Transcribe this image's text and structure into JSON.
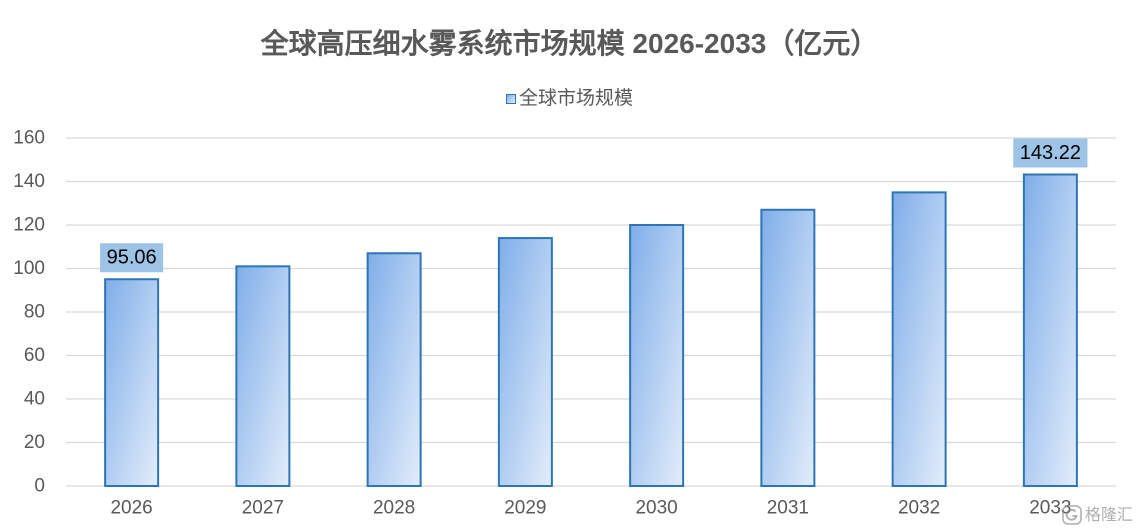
{
  "chart_data": {
    "type": "bar",
    "title": "全球高压细水雾系统市场规模 2026-2033（亿元）",
    "categories": [
      "2026",
      "2027",
      "2028",
      "2029",
      "2030",
      "2031",
      "2032",
      "2033"
    ],
    "series": [
      {
        "name": "全球市场规模",
        "values": [
          95.06,
          101,
          107,
          114,
          120,
          127,
          135,
          143.22
        ]
      }
    ],
    "data_labels": [
      {
        "index": 0,
        "text": "95.06"
      },
      {
        "index": 7,
        "text": "143.22"
      }
    ],
    "ylim": [
      0,
      160
    ],
    "yticks": [
      0,
      20,
      40,
      60,
      80,
      100,
      120,
      140,
      160
    ],
    "grid": true,
    "legend_position": "top-center"
  },
  "colors": {
    "text": "#595959",
    "grid": "#d9d9d9",
    "bar_border": "#2e75b6",
    "bar_gradient_start": "#7faee9",
    "bar_gradient_end": "#e3edfa",
    "label_box": "#9dc3e6"
  },
  "watermark": {
    "icon": "gelonghui-logo-icon",
    "text": "格隆汇"
  }
}
